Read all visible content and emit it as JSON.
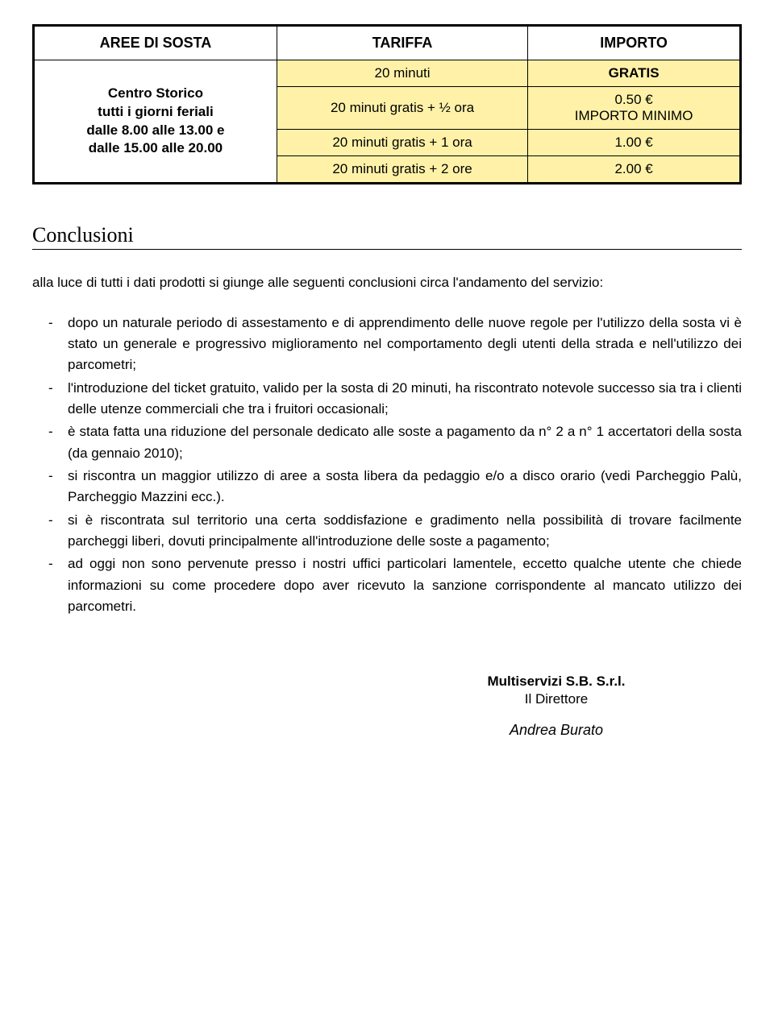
{
  "table": {
    "headers": [
      "AREE DI SOSTA",
      "TARIFFA",
      "IMPORTO"
    ],
    "area_lines": [
      "Centro Storico",
      "tutti i giorni feriali",
      "dalle 8.00 alle 13.00 e",
      "dalle 15.00 alle 20.00"
    ],
    "rows": [
      {
        "tariffa": "20 minuti",
        "importo": "GRATIS",
        "importo_bold": true
      },
      {
        "tariffa": "20 minuti gratis + ½ ora",
        "importo": "0.50 €\nIMPORTO MINIMO",
        "importo_bold": false
      },
      {
        "tariffa": "20 minuti gratis + 1 ora",
        "importo": "1.00 €",
        "importo_bold": false
      },
      {
        "tariffa": "20 minuti gratis + 2 ore",
        "importo": "2.00 €",
        "importo_bold": false
      }
    ],
    "colors": {
      "highlight_bg": "#fff2a8",
      "border": "#000000",
      "page_bg": "#ffffff"
    }
  },
  "section_title": "Conclusioni",
  "intro": "alla luce di tutti i dati prodotti si giunge alle seguenti conclusioni circa l'andamento del servizio:",
  "bullets": [
    "dopo un naturale periodo di assestamento e di apprendimento delle nuove regole per l'utilizzo della sosta vi è stato un generale e progressivo miglioramento nel comportamento degli utenti della strada e nell'utilizzo dei parcometri;",
    "l'introduzione del ticket gratuito, valido per la sosta di 20 minuti, ha riscontrato notevole successo sia tra i clienti delle utenze commerciali che tra i fruitori occasionali;",
    "è stata fatta una riduzione del personale dedicato alle soste a pagamento da n° 2 a n° 1 accertatori della sosta (da gennaio 2010);",
    "si riscontra un maggior utilizzo di aree a sosta libera da pedaggio e/o a disco orario (vedi Parcheggio Palù, Parcheggio Mazzini ecc.).",
    "si è riscontrata sul territorio una certa soddisfazione e gradimento nella possibilità di trovare facilmente parcheggi liberi, dovuti principalmente all'introduzione delle soste a pagamento;",
    "ad oggi non sono pervenute presso i nostri uffici particolari lamentele, eccetto qualche utente che chiede informazioni su come procedere dopo aver ricevuto la sanzione corrispondente al mancato utilizzo dei parcometri."
  ],
  "signature": {
    "company": "Multiservizi S.B. S.r.l.",
    "role": "Il Direttore",
    "name": "Andrea Burato"
  }
}
